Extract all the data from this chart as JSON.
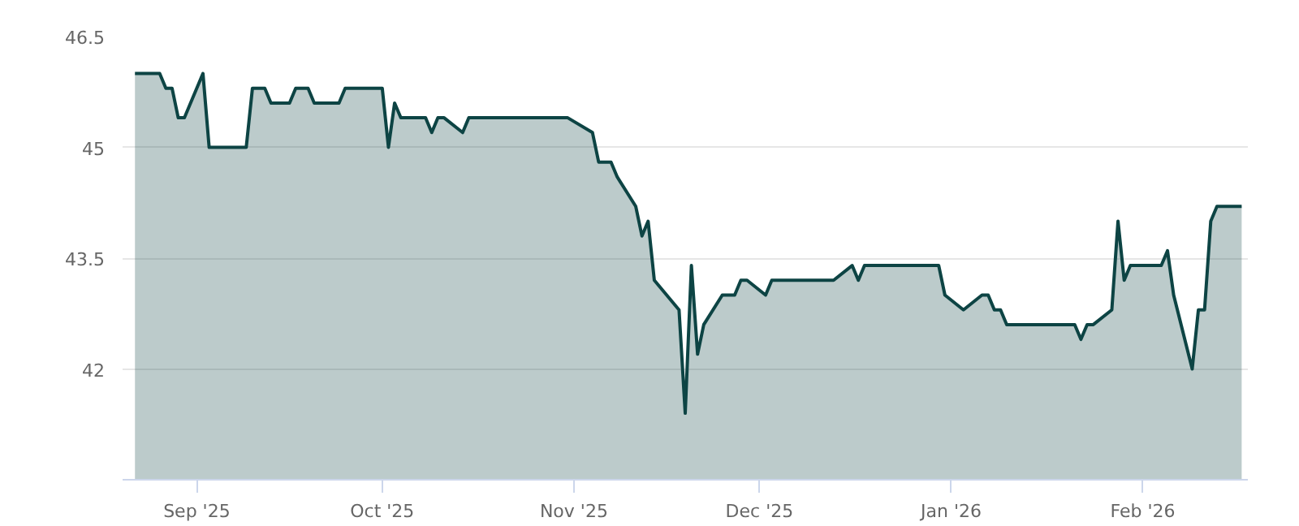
{
  "chart_data": {
    "type": "area",
    "x": [
      "2025-08-22",
      "2025-08-26",
      "2025-08-27",
      "2025-08-28",
      "2025-08-29",
      "2025-08-30",
      "2025-09-02",
      "2025-09-03",
      "2025-09-09",
      "2025-09-10",
      "2025-09-12",
      "2025-09-13",
      "2025-09-16",
      "2025-09-17",
      "2025-09-19",
      "2025-09-20",
      "2025-09-24",
      "2025-09-25",
      "2025-10-01",
      "2025-10-02",
      "2025-10-03",
      "2025-10-04",
      "2025-10-08",
      "2025-10-09",
      "2025-10-10",
      "2025-10-11",
      "2025-10-14",
      "2025-10-15",
      "2025-10-31",
      "2025-11-04",
      "2025-11-05",
      "2025-11-07",
      "2025-11-08",
      "2025-11-11",
      "2025-11-12",
      "2025-11-13",
      "2025-11-14",
      "2025-11-18",
      "2025-11-19",
      "2025-11-20",
      "2025-11-21",
      "2025-11-22",
      "2025-11-25",
      "2025-11-27",
      "2025-11-28",
      "2025-11-29",
      "2025-12-02",
      "2025-12-03",
      "2025-12-13",
      "2025-12-16",
      "2025-12-17",
      "2025-12-18",
      "2025-12-30",
      "2025-12-31",
      "2026-01-03",
      "2026-01-06",
      "2026-01-07",
      "2026-01-08",
      "2026-01-09",
      "2026-01-10",
      "2026-01-21",
      "2026-01-22",
      "2026-01-23",
      "2026-01-24",
      "2026-01-27",
      "2026-01-28",
      "2026-01-29",
      "2026-01-30",
      "2026-02-04",
      "2026-02-05",
      "2026-02-06",
      "2026-02-09",
      "2026-02-10",
      "2026-02-11",
      "2026-02-12",
      "2026-02-13",
      "2026-02-17"
    ],
    "series": [
      {
        "color": "#0d4444",
        "values": [
          46.0,
          46.0,
          45.8,
          45.8,
          45.4,
          45.4,
          46.0,
          45.0,
          45.0,
          45.8,
          45.8,
          45.6,
          45.6,
          45.8,
          45.8,
          45.6,
          45.6,
          45.8,
          45.8,
          45.0,
          45.6,
          45.4,
          45.4,
          45.2,
          45.4,
          45.4,
          45.2,
          45.4,
          45.4,
          45.2,
          44.8,
          44.8,
          44.6,
          44.2,
          43.8,
          44.0,
          43.2,
          42.8,
          41.4,
          43.4,
          42.2,
          42.6,
          43.0,
          43.0,
          43.2,
          43.2,
          43.0,
          43.2,
          43.2,
          43.4,
          43.2,
          43.4,
          43.4,
          43.0,
          42.8,
          43.0,
          43.0,
          42.8,
          42.8,
          42.6,
          42.6,
          42.4,
          42.6,
          42.6,
          42.8,
          44.0,
          43.2,
          43.4,
          43.4,
          43.6,
          43.0,
          42.0,
          42.8,
          42.8,
          44.0,
          44.2,
          44.2
        ]
      }
    ],
    "xlim": [
      "2025-08-20",
      "2026-02-18"
    ],
    "xticks": [
      {
        "value": "2025-09-01",
        "label": "Sep '25"
      },
      {
        "value": "2025-10-01",
        "label": "Oct '25"
      },
      {
        "value": "2025-11-01",
        "label": "Nov '25"
      },
      {
        "value": "2025-12-01",
        "label": "Dec '25"
      },
      {
        "value": "2026-01-01",
        "label": "Jan '26"
      },
      {
        "value": "2026-02-01",
        "label": "Feb '26"
      }
    ],
    "ylim": [
      40.5,
      46.5
    ],
    "yticks": [
      42,
      43.5,
      45,
      46.5
    ],
    "grid": "y",
    "line_style": "solid"
  }
}
